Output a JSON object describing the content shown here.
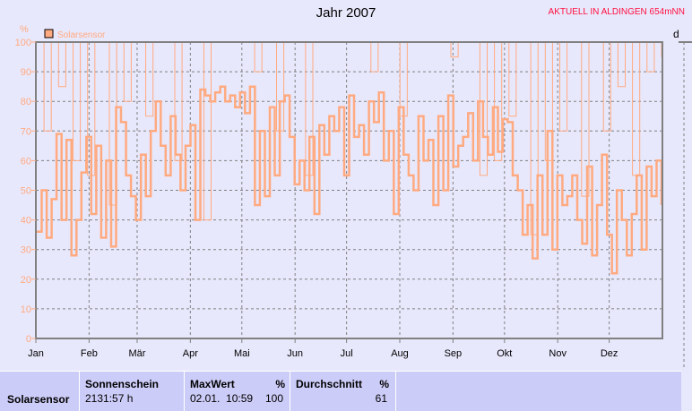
{
  "title": "Jahr 2007",
  "live_label": "AKTUELL IN ALDINGEN 654mNN",
  "right_axis_label": "d",
  "chart_data": {
    "type": "line",
    "title": "Jahr 2007",
    "ylabel": "%",
    "ylim": [
      0,
      100
    ],
    "yticks": [
      0,
      10,
      20,
      30,
      40,
      50,
      60,
      70,
      80,
      90,
      100
    ],
    "xlim": [
      "2007-01-01",
      "2007-12-31"
    ],
    "xticks": [
      "Jan",
      "Feb",
      "Mär",
      "Apr",
      "Mai",
      "Jun",
      "Jul",
      "Aug",
      "Sep",
      "Okt",
      "Nov",
      "Dez"
    ],
    "grid": true,
    "legend": {
      "position": "top-left",
      "entries": [
        "Solarsensor"
      ]
    },
    "color": "#ffaa80",
    "series": [
      {
        "name": "Solarsensor",
        "values": [
          36,
          50,
          34,
          47,
          69,
          40,
          67,
          28,
          40,
          56,
          68,
          42,
          65,
          34,
          60,
          31,
          78,
          73,
          55,
          48,
          40,
          62,
          48,
          70,
          80,
          65,
          55,
          75,
          62,
          50,
          65,
          72,
          40,
          84,
          82,
          80,
          83,
          85,
          80,
          82,
          78,
          83,
          76,
          85,
          45,
          70,
          48,
          78,
          55,
          80,
          82,
          68,
          52,
          60,
          50,
          68,
          42,
          72,
          62,
          75,
          70,
          78,
          55,
          82,
          68,
          72,
          62,
          80,
          73,
          83,
          60,
          70,
          42,
          78,
          62,
          55,
          50,
          75,
          60,
          67,
          45,
          75,
          50,
          82,
          58,
          65,
          68,
          76,
          60,
          80,
          68,
          62,
          78,
          63,
          74,
          73,
          55,
          50,
          35,
          45,
          27,
          55,
          35,
          70,
          30,
          55,
          45,
          48,
          55,
          40,
          32,
          58,
          28,
          45,
          62,
          35,
          22,
          50,
          40,
          28,
          42,
          55,
          30,
          58,
          48,
          60,
          45
        ]
      },
      {
        "values": [
          100,
          70,
          100,
          85,
          100,
          60,
          100,
          55,
          100,
          100,
          45,
          100,
          80,
          100,
          100,
          75,
          100,
          100,
          100,
          60,
          100,
          100,
          100,
          40,
          100,
          100,
          100,
          100,
          100,
          100,
          90,
          100,
          100,
          70,
          100,
          100,
          100,
          55,
          100,
          100,
          100,
          100,
          100,
          100,
          100,
          100,
          90,
          100,
          100,
          100,
          75,
          100,
          100,
          100,
          100,
          100,
          100,
          95,
          100,
          100,
          100,
          55,
          100,
          60,
          100,
          75,
          100,
          100,
          35,
          100,
          60,
          100,
          70,
          100,
          100,
          48,
          100,
          100,
          70,
          100,
          85,
          100,
          55,
          100,
          90,
          100,
          95
        ]
      }
    ]
  },
  "summary": {
    "sensor": "Solarsensor",
    "sunshine_header": "Sonnenschein",
    "sunshine_value": "2131:57 h",
    "max_header": "MaxWert",
    "max_unit": "%",
    "max_time": "02.01.  10:59",
    "max_value": "100",
    "avg_header": "Durchschnitt",
    "avg_unit": "%",
    "avg_value": "61"
  }
}
